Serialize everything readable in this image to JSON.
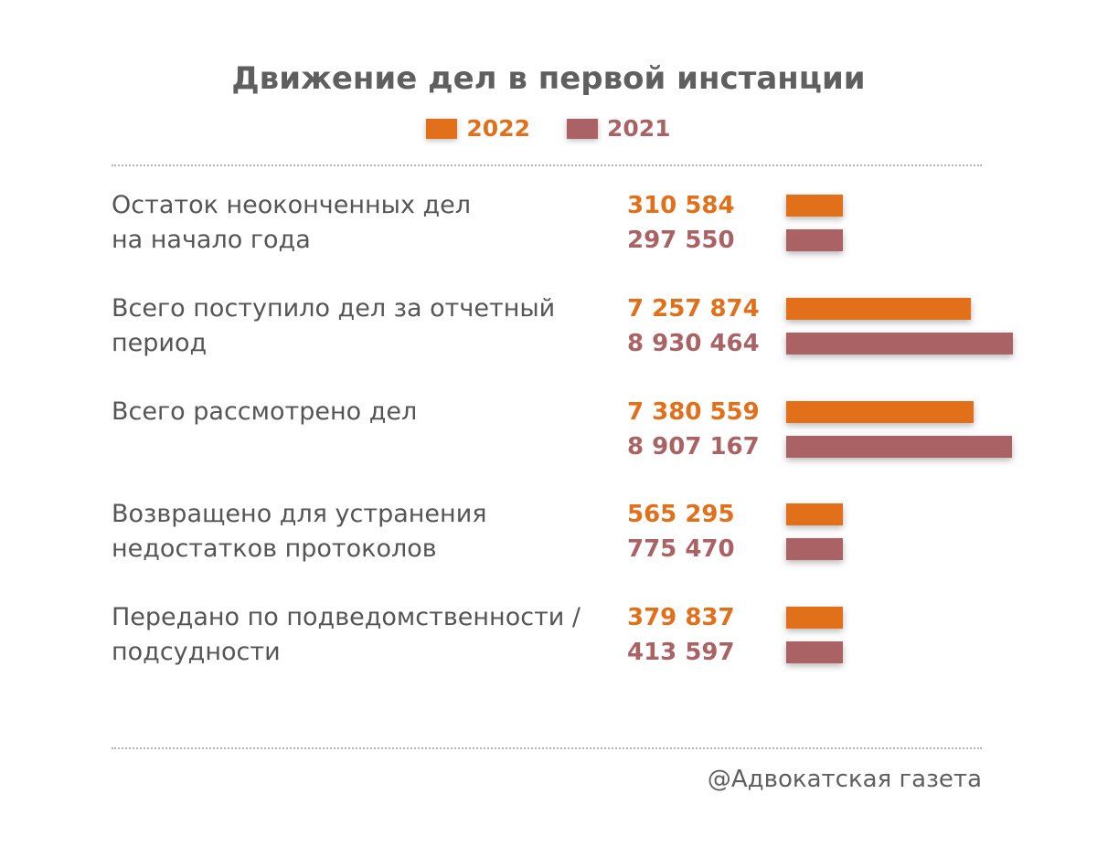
{
  "colors": {
    "y2022": "#e2701b",
    "y2021": "#ab6264",
    "text": "#555555"
  },
  "chart_data": {
    "type": "bar",
    "title": "Движение дел в первой инстанции",
    "orientation": "horizontal",
    "legend_position": "top-center",
    "series": [
      {
        "name": "2022",
        "values": [
          310584,
          7257874,
          7380559,
          565295,
          379837
        ]
      },
      {
        "name": "2021",
        "values": [
          297550,
          8930464,
          8907167,
          775470,
          413597
        ]
      }
    ],
    "categories": [
      "Остаток неоконченных дел\nна начало года",
      "Всего поступило дел за отчетный\nпериод",
      "Всего рассмотрено дел",
      "Возвращено для устранения\nнедостатков протоколов",
      "Передано по подведомственности /\nподсудности"
    ],
    "value_labels_2022": [
      "310 584",
      "7 257 874",
      "7 380 559",
      "565 295",
      "379 837"
    ],
    "value_labels_2021": [
      "297 550",
      "8 930 464",
      "8 907 167",
      "775 470",
      "413 597"
    ],
    "xlim": [
      0,
      9000000
    ],
    "grid": false
  },
  "legend": {
    "item_2022": "2022",
    "item_2021": "2021"
  },
  "footer": "@Адвокатская газета"
}
